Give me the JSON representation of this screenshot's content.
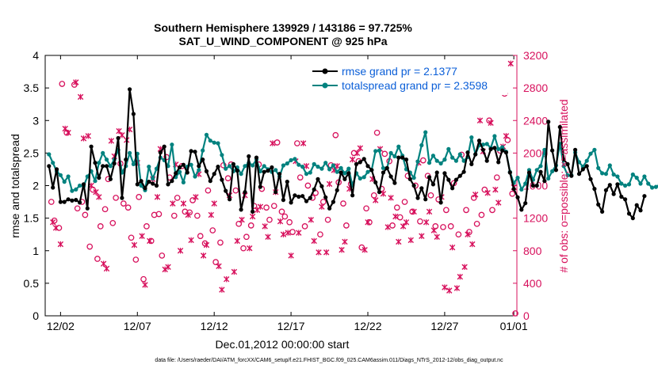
{
  "chart_data": {
    "type": "line",
    "title": "Southern Hemisphere 139929 / 143186 = 97.725%",
    "subtitle": "SAT_U_WIND_COMPONENT @ 925 hPa",
    "xlabel": "Dec.01,2012 00:00:00 start",
    "ylabel_left": "rmse and totalspread",
    "ylabel_right": "# of obs: o=possible; ×=assimilated",
    "xlim": [
      0.5,
      31.2
    ],
    "ylim_left": [
      0,
      4
    ],
    "ylim_right": [
      0,
      3200
    ],
    "x_ticks": [
      {
        "pos": 1.5,
        "label": "12/02"
      },
      {
        "pos": 6.5,
        "label": "12/07"
      },
      {
        "pos": 11.5,
        "label": "12/12"
      },
      {
        "pos": 16.5,
        "label": "12/17"
      },
      {
        "pos": 21.5,
        "label": "12/22"
      },
      {
        "pos": 26.5,
        "label": "12/27"
      },
      {
        "pos": 31.0,
        "label": "01/01"
      }
    ],
    "y_ticks_left": [
      "0",
      "0.5",
      "1",
      "1.5",
      "2",
      "2.5",
      "3",
      "3.5",
      "4"
    ],
    "y_ticks_right": [
      "0",
      "400",
      "800",
      "1200",
      "1600",
      "2000",
      "2400",
      "2800",
      "3200"
    ],
    "x_start": 0.75,
    "x_step": 0.25,
    "series": [
      {
        "name": "rmse grand pr = 2.1377",
        "color": "#000000",
        "axis": "left",
        "values": [
          2.3,
          1.97,
          2.25,
          1.75,
          1.75,
          1.79,
          1.77,
          1.78,
          1.74,
          2.02,
          1.65,
          2.6,
          2.35,
          2.12,
          2.3,
          2.3,
          2.1,
          2.34,
          2.73,
          1.81,
          2.4,
          3.48,
          3.1,
          2.02,
          2.07,
          1.96,
          2.06,
          2.03,
          2.0,
          2.51,
          2.6,
          2.02,
          2.07,
          2.19,
          2.28,
          2.32,
          2.2,
          2.53,
          2.52,
          2.3,
          2.4,
          2.22,
          2.07,
          2.18,
          2.29,
          2.09,
          1.92,
          1.79,
          2.33,
          2.23,
          1.63,
          1.9,
          2.45,
          1.6,
          2.43,
          1.98,
          2.21,
          2.23,
          2.28,
          1.9,
          2.18,
          1.78,
          2.06,
          1.74,
          1.85,
          1.83,
          1.84,
          1.76,
          1.81,
          1.94,
          2.1,
          1.99,
          1.82,
          1.65,
          1.75,
          1.93,
          2.2,
          2.1,
          2.19,
          1.85,
          2.33,
          2.36,
          2.41,
          2.3,
          2.24,
          2.05,
          1.9,
          2.2,
          2.27,
          2.14,
          2.04,
          2.43,
          2.43,
          2.4,
          2.1,
          2.0,
          1.81,
          1.96,
          1.79,
          2.13,
          2.02,
          2.2,
          1.74,
          2.19,
          2.09,
          1.96,
          2.09,
          2.15,
          2.21,
          2.51,
          2.33,
          2.48,
          2.69,
          2.55,
          2.38,
          2.56,
          2.58,
          2.36,
          2.54,
          2.51,
          2.2,
          1.95,
          1.82,
          1.63,
          1.73,
          2.2,
          2.0,
          2.0,
          2.21,
          2.07,
          2.98,
          2.54,
          2.24,
          2.9,
          2.4,
          2.33,
          2.15,
          2.55,
          2.18,
          2.25,
          2.3,
          2.1,
          1.95,
          1.71,
          1.6,
          1.93,
          2.01,
          1.87,
          2.02,
          1.83,
          1.79,
          1.57,
          1.5,
          1.7,
          1.62,
          1.84
        ]
      },
      {
        "name": "totalspread grand pr = 2.3598",
        "color": "#00827f",
        "axis": "left",
        "values": [
          2.48,
          2.35,
          2.22,
          2.16,
          2.06,
          2.14,
          1.92,
          1.94,
          2.0,
          1.99,
          2.14,
          2.22,
          2.07,
          2.35,
          2.5,
          2.4,
          2.3,
          2.4,
          2.55,
          2.2,
          2.3,
          2.5,
          2.33,
          2.49,
          2.0,
          1.93,
          2.29,
          2.11,
          2.26,
          2.43,
          2.39,
          2.3,
          2.63,
          2.13,
          2.21,
          2.05,
          2.29,
          2.32,
          2.14,
          2.24,
          2.54,
          2.78,
          2.69,
          2.66,
          2.65,
          2.47,
          2.26,
          2.3,
          2.22,
          2.28,
          2.18,
          2.3,
          2.35,
          2.31,
          2.4,
          2.22,
          2.3,
          2.25,
          2.21,
          2.24,
          2.14,
          2.31,
          2.34,
          2.39,
          2.41,
          2.32,
          2.29,
          2.18,
          2.2,
          2.33,
          2.29,
          2.26,
          2.35,
          2.25,
          2.31,
          2.21,
          2.27,
          2.19,
          2.26,
          2.0,
          2.19,
          2.11,
          2.13,
          2.21,
          2.24,
          2.53,
          2.54,
          2.27,
          2.27,
          2.5,
          2.45,
          2.6,
          2.46,
          2.25,
          2.2,
          2.12,
          2.37,
          2.62,
          2.82,
          2.35,
          2.46,
          2.38,
          2.34,
          2.4,
          2.56,
          2.43,
          2.38,
          2.48,
          2.38,
          2.44,
          2.74,
          2.48,
          2.62,
          2.63,
          2.64,
          2.58,
          2.76,
          2.56,
          2.59,
          2.52,
          2.21,
          2.04,
          2.12,
          1.94,
          2.03,
          2.24,
          2.09,
          2.24,
          2.3,
          2.55,
          2.11,
          2.22,
          2.31,
          2.64,
          2.3,
          2.16,
          2.16,
          2.51,
          2.36,
          2.29,
          2.38,
          2.49,
          2.55,
          2.27,
          2.19,
          2.18,
          2.31,
          2.17,
          2.14,
          2.03,
          2.0,
          2.02,
          2.17,
          2.12,
          2.03,
          2.14,
          2.03,
          1.97,
          1.98,
          2.01
        ]
      }
    ],
    "obs_possible": [
      [
        0.9,
        1400
      ],
      [
        1.1,
        1170
      ],
      [
        1.4,
        1080
      ],
      [
        1.6,
        2850
      ],
      [
        1.9,
        2250
      ],
      [
        2.4,
        2840
      ],
      [
        2.6,
        1320
      ],
      [
        2.9,
        1400
      ],
      [
        3.1,
        1240
      ],
      [
        3.4,
        850
      ],
      [
        3.6,
        1550
      ],
      [
        3.9,
        700
      ],
      [
        4.1,
        1100
      ],
      [
        4.4,
        1310
      ],
      [
        4.6,
        1680
      ],
      [
        4.9,
        1140
      ],
      [
        5.1,
        1450
      ],
      [
        5.4,
        1870
      ],
      [
        5.6,
        1380
      ],
      [
        5.9,
        1330
      ],
      [
        6.1,
        960
      ],
      [
        6.4,
        690
      ],
      [
        6.6,
        1460
      ],
      [
        6.9,
        450
      ],
      [
        7.1,
        1100
      ],
      [
        7.4,
        920
      ],
      [
        7.6,
        1240
      ],
      [
        7.9,
        1250
      ],
      [
        8.1,
        740
      ],
      [
        8.4,
        1950
      ],
      [
        8.6,
        1700
      ],
      [
        8.9,
        1230
      ],
      [
        9.1,
        1450
      ],
      [
        9.4,
        1840
      ],
      [
        9.6,
        1280
      ],
      [
        9.9,
        1270
      ],
      [
        10.1,
        1420
      ],
      [
        10.4,
        1230
      ],
      [
        10.6,
        980
      ],
      [
        10.9,
        890
      ],
      [
        11.1,
        1540
      ],
      [
        11.4,
        1050
      ],
      [
        11.6,
        660
      ],
      [
        11.9,
        900
      ],
      [
        12.1,
        1850
      ],
      [
        12.4,
        1690
      ],
      [
        12.6,
        1860
      ],
      [
        12.9,
        1540
      ],
      [
        13.1,
        1130
      ],
      [
        13.4,
        830
      ],
      [
        13.6,
        970
      ],
      [
        13.9,
        1110
      ],
      [
        14.1,
        1350
      ],
      [
        14.4,
        1860
      ],
      [
        14.6,
        1560
      ],
      [
        14.9,
        1330
      ],
      [
        15.1,
        1180
      ],
      [
        15.4,
        1350
      ],
      [
        15.6,
        2130
      ],
      [
        15.9,
        1280
      ],
      [
        16.1,
        1220
      ],
      [
        16.4,
        1150
      ],
      [
        16.6,
        1030
      ],
      [
        16.9,
        2120
      ],
      [
        17.1,
        1700
      ],
      [
        17.4,
        1100
      ],
      [
        17.6,
        1600
      ],
      [
        17.9,
        1450
      ],
      [
        18.1,
        1510
      ],
      [
        18.4,
        1000
      ],
      [
        18.6,
        1400
      ],
      [
        18.9,
        1180
      ],
      [
        19.1,
        1850
      ],
      [
        19.4,
        2220
      ],
      [
        19.6,
        1640
      ],
      [
        19.9,
        1380
      ],
      [
        20.1,
        1110
      ],
      [
        20.4,
        1620
      ],
      [
        20.6,
        2000
      ],
      [
        20.9,
        1900
      ],
      [
        21.1,
        840
      ],
      [
        21.4,
        1320
      ],
      [
        21.6,
        1150
      ],
      [
        21.9,
        1480
      ],
      [
        22.1,
        2250
      ],
      [
        22.4,
        1560
      ],
      [
        22.6,
        1990
      ],
      [
        22.9,
        1900
      ],
      [
        23.1,
        1110
      ],
      [
        23.4,
        1330
      ],
      [
        23.6,
        1210
      ],
      [
        23.9,
        1400
      ],
      [
        24.1,
        1720
      ],
      [
        24.4,
        1280
      ],
      [
        24.6,
        1600
      ],
      [
        24.9,
        1160
      ],
      [
        25.1,
        1910
      ],
      [
        25.4,
        1720
      ],
      [
        25.6,
        1480
      ],
      [
        25.9,
        1100
      ],
      [
        26.1,
        1430
      ],
      [
        26.4,
        1090
      ],
      [
        26.6,
        1300
      ],
      [
        26.9,
        1100
      ],
      [
        27.1,
        1630
      ],
      [
        27.4,
        1000
      ],
      [
        27.6,
        1980
      ],
      [
        27.9,
        1300
      ],
      [
        28.1,
        1030
      ],
      [
        28.4,
        1450
      ],
      [
        28.6,
        1130
      ],
      [
        28.9,
        1240
      ],
      [
        29.1,
        1550
      ],
      [
        29.4,
        2400
      ],
      [
        29.6,
        1300
      ],
      [
        29.9,
        1700
      ],
      [
        30.1,
        2030
      ],
      [
        30.4,
        2730
      ],
      [
        30.6,
        2160
      ],
      [
        30.9,
        1500
      ],
      [
        31.1,
        30
      ]
    ],
    "obs_assimilated": [
      [
        1.0,
        1150
      ],
      [
        1.2,
        1080
      ],
      [
        1.5,
        880
      ],
      [
        1.8,
        2300
      ],
      [
        2.0,
        2250
      ],
      [
        2.5,
        2870
      ],
      [
        2.8,
        2690
      ],
      [
        3.0,
        2180
      ],
      [
        3.3,
        2210
      ],
      [
        3.5,
        1600
      ],
      [
        3.8,
        1520
      ],
      [
        4.0,
        1460
      ],
      [
        4.3,
        640
      ],
      [
        4.5,
        580
      ],
      [
        4.8,
        2150
      ],
      [
        5.0,
        1960
      ],
      [
        5.3,
        2270
      ],
      [
        5.5,
        2220
      ],
      [
        5.8,
        2160
      ],
      [
        6.0,
        2290
      ],
      [
        6.3,
        870
      ],
      [
        6.5,
        1880
      ],
      [
        6.8,
        980
      ],
      [
        7.0,
        380
      ],
      [
        7.3,
        920
      ],
      [
        7.5,
        1680
      ],
      [
        7.8,
        1460
      ],
      [
        8.0,
        2050
      ],
      [
        8.3,
        570
      ],
      [
        8.5,
        600
      ],
      [
        8.8,
        1380
      ],
      [
        9.0,
        1860
      ],
      [
        9.3,
        800
      ],
      [
        9.5,
        1380
      ],
      [
        9.8,
        1240
      ],
      [
        10.0,
        930
      ],
      [
        10.3,
        1460
      ],
      [
        10.5,
        1740
      ],
      [
        10.8,
        740
      ],
      [
        11.0,
        870
      ],
      [
        11.3,
        1240
      ],
      [
        11.5,
        1380
      ],
      [
        11.8,
        610
      ],
      [
        12.0,
        320
      ],
      [
        12.3,
        450
      ],
      [
        12.5,
        1480
      ],
      [
        12.8,
        540
      ],
      [
        13.0,
        920
      ],
      [
        13.3,
        1180
      ],
      [
        13.5,
        1480
      ],
      [
        13.8,
        830
      ],
      [
        14.0,
        1220
      ],
      [
        14.3,
        1300
      ],
      [
        14.5,
        1340
      ],
      [
        14.8,
        1100
      ],
      [
        15.0,
        970
      ],
      [
        15.3,
        2120
      ],
      [
        15.5,
        1520
      ],
      [
        15.8,
        1160
      ],
      [
        16.0,
        1000
      ],
      [
        16.3,
        1020
      ],
      [
        16.5,
        740
      ],
      [
        16.8,
        1900
      ],
      [
        17.0,
        1020
      ],
      [
        17.3,
        2120
      ],
      [
        17.5,
        1840
      ],
      [
        17.8,
        1180
      ],
      [
        18.0,
        920
      ],
      [
        18.3,
        780
      ],
      [
        18.5,
        1340
      ],
      [
        18.8,
        780
      ],
      [
        19.0,
        1620
      ],
      [
        19.3,
        1790
      ],
      [
        19.5,
        1840
      ],
      [
        19.8,
        810
      ],
      [
        20.0,
        910
      ],
      [
        20.3,
        1560
      ],
      [
        20.5,
        1920
      ],
      [
        20.8,
        2000
      ],
      [
        21.0,
        2060
      ],
      [
        21.3,
        810
      ],
      [
        21.5,
        1150
      ],
      [
        21.8,
        1680
      ],
      [
        22.0,
        1420
      ],
      [
        22.3,
        2050
      ],
      [
        22.5,
        1500
      ],
      [
        22.8,
        1090
      ],
      [
        23.0,
        1450
      ],
      [
        23.3,
        1220
      ],
      [
        23.5,
        910
      ],
      [
        23.8,
        1100
      ],
      [
        24.0,
        1150
      ],
      [
        24.3,
        930
      ],
      [
        24.5,
        1280
      ],
      [
        24.8,
        1880
      ],
      [
        25.0,
        980
      ],
      [
        25.3,
        1150
      ],
      [
        25.5,
        1280
      ],
      [
        25.8,
        1050
      ],
      [
        26.0,
        970
      ],
      [
        26.3,
        1460
      ],
      [
        26.5,
        350
      ],
      [
        26.8,
        310
      ],
      [
        27.0,
        840
      ],
      [
        27.3,
        340
      ],
      [
        27.5,
        480
      ],
      [
        27.8,
        600
      ],
      [
        28.0,
        1000
      ],
      [
        28.3,
        880
      ],
      [
        28.5,
        1490
      ],
      [
        28.8,
        2400
      ],
      [
        29.0,
        2020
      ],
      [
        29.3,
        1510
      ],
      [
        29.5,
        2370
      ],
      [
        29.8,
        1550
      ],
      [
        30.0,
        1390
      ],
      [
        30.3,
        2080
      ],
      [
        30.5,
        2210
      ],
      [
        30.8,
        3100
      ],
      [
        31.0,
        1580
      ]
    ],
    "obs_color": "#d7105c",
    "legend_position": "top-right"
  }
}
